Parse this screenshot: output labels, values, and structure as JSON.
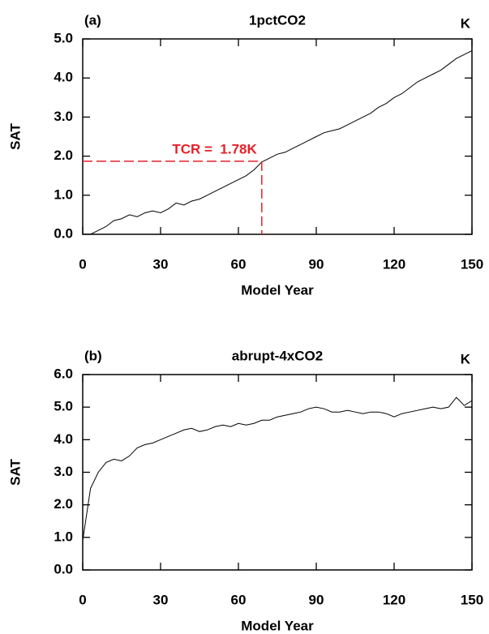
{
  "chart_data": [
    {
      "type": "line",
      "panel_label": "(a)",
      "title": "1pctCO2",
      "units": "K",
      "x_label": "Model Year",
      "y_label": "SAT",
      "color": "#000000",
      "x": [
        0,
        3,
        6,
        9,
        12,
        15,
        18,
        21,
        24,
        27,
        30,
        33,
        36,
        39,
        42,
        45,
        48,
        51,
        54,
        57,
        60,
        63,
        66,
        69,
        72,
        75,
        78,
        81,
        84,
        87,
        90,
        93,
        96,
        99,
        102,
        105,
        108,
        111,
        114,
        117,
        120,
        123,
        126,
        129,
        132,
        135,
        138,
        141,
        144,
        147,
        150
      ],
      "values": [
        0.0,
        0.0,
        0.1,
        0.2,
        0.35,
        0.4,
        0.5,
        0.45,
        0.55,
        0.6,
        0.55,
        0.65,
        0.8,
        0.75,
        0.85,
        0.9,
        1.0,
        1.1,
        1.2,
        1.3,
        1.4,
        1.5,
        1.65,
        1.85,
        1.95,
        2.05,
        2.1,
        2.2,
        2.3,
        2.4,
        2.5,
        2.6,
        2.65,
        2.7,
        2.8,
        2.9,
        3.0,
        3.1,
        3.25,
        3.35,
        3.5,
        3.6,
        3.75,
        3.9,
        4.0,
        4.1,
        4.2,
        4.35,
        4.5,
        4.6,
        4.7
      ],
      "xlim": [
        0,
        150
      ],
      "xticks": [
        0,
        30,
        60,
        90,
        120,
        150
      ],
      "ylim": [
        0,
        5
      ],
      "yticks": [
        {
          "value": 0,
          "label": "0.0"
        },
        {
          "value": 1,
          "label": "1.0"
        },
        {
          "value": 2,
          "label": "2.0"
        },
        {
          "value": 3,
          "label": "3.0"
        },
        {
          "value": 4,
          "label": "4.0"
        },
        {
          "value": 5,
          "label": "5.0"
        }
      ],
      "annotation": {
        "text": "TCR =  1.78K",
        "x": 69,
        "y": 1.87,
        "color": "#e8202a"
      }
    },
    {
      "type": "line",
      "panel_label": "(b)",
      "title": "abrupt-4xCO2",
      "units": "K",
      "x_label": "Model Year",
      "y_label": "SAT",
      "color": "#000000",
      "x": [
        0,
        3,
        6,
        9,
        12,
        15,
        18,
        21,
        24,
        27,
        30,
        33,
        36,
        39,
        42,
        45,
        48,
        51,
        54,
        57,
        60,
        63,
        66,
        69,
        72,
        75,
        78,
        81,
        84,
        87,
        90,
        93,
        96,
        99,
        102,
        105,
        108,
        111,
        114,
        117,
        120,
        123,
        126,
        129,
        132,
        135,
        138,
        141,
        144,
        147,
        150
      ],
      "values": [
        0.9,
        2.5,
        3.0,
        3.3,
        3.4,
        3.35,
        3.5,
        3.75,
        3.85,
        3.9,
        4.0,
        4.1,
        4.2,
        4.3,
        4.35,
        4.25,
        4.3,
        4.4,
        4.45,
        4.4,
        4.5,
        4.45,
        4.5,
        4.6,
        4.6,
        4.7,
        4.75,
        4.8,
        4.85,
        4.95,
        5.0,
        4.95,
        4.85,
        4.85,
        4.9,
        4.85,
        4.8,
        4.85,
        4.85,
        4.8,
        4.7,
        4.8,
        4.85,
        4.9,
        4.95,
        5.0,
        4.95,
        5.0,
        5.3,
        5.05,
        5.2
      ],
      "xlim": [
        0,
        150
      ],
      "xticks": [
        0,
        30,
        60,
        90,
        120,
        150
      ],
      "ylim": [
        0,
        6
      ],
      "yticks": [
        {
          "value": 0,
          "label": "0.0"
        },
        {
          "value": 1,
          "label": "1.0"
        },
        {
          "value": 2,
          "label": "2.0"
        },
        {
          "value": 3,
          "label": "3.0"
        },
        {
          "value": 4,
          "label": "4.0"
        },
        {
          "value": 5,
          "label": "5.0"
        },
        {
          "value": 6,
          "label": "6.0"
        }
      ]
    }
  ]
}
